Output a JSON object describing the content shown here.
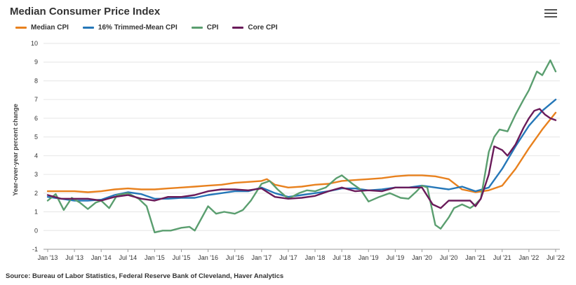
{
  "chart_data": {
    "type": "line",
    "title": "Median Consumer Price Index",
    "ylabel": "Year-over-year percent change",
    "xlabel": "",
    "ylim": [
      -1,
      10
    ],
    "yticks": [
      "-1",
      "0",
      "1",
      "2",
      "3",
      "4",
      "5",
      "6",
      "7",
      "8",
      "9",
      "10"
    ],
    "xticks": [
      "Jan '13",
      "Jul '13",
      "Jan '14",
      "Jul '14",
      "Jan '15",
      "Jul '15",
      "Jan '16",
      "Jul '16",
      "Jan '17",
      "Jul '17",
      "Jan '18",
      "Jul '18",
      "Jan '19",
      "Jul '19",
      "Jan '20",
      "Jul '20",
      "Jan '21",
      "Jul '21",
      "Jan '22",
      "Jul '22"
    ],
    "x_range": [
      2013.0,
      2022.5
    ],
    "series": [
      {
        "name": "Median CPI",
        "color": "#e8811e",
        "points": [
          [
            2013.0,
            2.1
          ],
          [
            2013.25,
            2.1
          ],
          [
            2013.5,
            2.1
          ],
          [
            2013.75,
            2.05
          ],
          [
            2014.0,
            2.1
          ],
          [
            2014.25,
            2.2
          ],
          [
            2014.5,
            2.25
          ],
          [
            2014.75,
            2.2
          ],
          [
            2015.0,
            2.2
          ],
          [
            2015.25,
            2.25
          ],
          [
            2015.5,
            2.3
          ],
          [
            2015.75,
            2.35
          ],
          [
            2016.0,
            2.4
          ],
          [
            2016.25,
            2.45
          ],
          [
            2016.5,
            2.55
          ],
          [
            2016.75,
            2.6
          ],
          [
            2017.0,
            2.65
          ],
          [
            2017.1,
            2.75
          ],
          [
            2017.25,
            2.45
          ],
          [
            2017.5,
            2.3
          ],
          [
            2017.75,
            2.35
          ],
          [
            2018.0,
            2.45
          ],
          [
            2018.25,
            2.5
          ],
          [
            2018.5,
            2.65
          ],
          [
            2018.75,
            2.7
          ],
          [
            2019.0,
            2.75
          ],
          [
            2019.25,
            2.8
          ],
          [
            2019.5,
            2.9
          ],
          [
            2019.75,
            2.95
          ],
          [
            2020.0,
            2.95
          ],
          [
            2020.25,
            2.9
          ],
          [
            2020.5,
            2.75
          ],
          [
            2020.75,
            2.2
          ],
          [
            2021.0,
            2.05
          ],
          [
            2021.25,
            2.15
          ],
          [
            2021.5,
            2.4
          ],
          [
            2021.75,
            3.3
          ],
          [
            2022.0,
            4.4
          ],
          [
            2022.25,
            5.4
          ],
          [
            2022.5,
            6.3
          ]
        ]
      },
      {
        "name": "16% Trimmed-Mean CPI",
        "color": "#2577b8",
        "points": [
          [
            2013.0,
            1.8
          ],
          [
            2013.25,
            1.7
          ],
          [
            2013.5,
            1.6
          ],
          [
            2013.75,
            1.6
          ],
          [
            2014.0,
            1.65
          ],
          [
            2014.25,
            1.9
          ],
          [
            2014.5,
            2.05
          ],
          [
            2014.75,
            1.95
          ],
          [
            2015.0,
            1.7
          ],
          [
            2015.25,
            1.7
          ],
          [
            2015.5,
            1.75
          ],
          [
            2015.75,
            1.75
          ],
          [
            2016.0,
            1.9
          ],
          [
            2016.25,
            2.0
          ],
          [
            2016.5,
            2.1
          ],
          [
            2016.75,
            2.1
          ],
          [
            2017.0,
            2.3
          ],
          [
            2017.25,
            2.0
          ],
          [
            2017.5,
            1.8
          ],
          [
            2017.75,
            1.9
          ],
          [
            2018.0,
            2.0
          ],
          [
            2018.25,
            2.1
          ],
          [
            2018.5,
            2.25
          ],
          [
            2018.75,
            2.25
          ],
          [
            2019.0,
            2.15
          ],
          [
            2019.25,
            2.2
          ],
          [
            2019.5,
            2.3
          ],
          [
            2019.75,
            2.3
          ],
          [
            2020.0,
            2.4
          ],
          [
            2020.25,
            2.3
          ],
          [
            2020.5,
            2.2
          ],
          [
            2020.75,
            2.35
          ],
          [
            2021.0,
            2.1
          ],
          [
            2021.25,
            2.3
          ],
          [
            2021.5,
            3.3
          ],
          [
            2021.75,
            4.5
          ],
          [
            2022.0,
            5.6
          ],
          [
            2022.25,
            6.4
          ],
          [
            2022.5,
            7.0
          ]
        ]
      },
      {
        "name": "CPI",
        "color": "#5a9e6f",
        "points": [
          [
            2013.0,
            1.6
          ],
          [
            2013.15,
            1.95
          ],
          [
            2013.3,
            1.1
          ],
          [
            2013.45,
            1.75
          ],
          [
            2013.6,
            1.5
          ],
          [
            2013.75,
            1.15
          ],
          [
            2013.9,
            1.5
          ],
          [
            2014.0,
            1.6
          ],
          [
            2014.15,
            1.2
          ],
          [
            2014.3,
            1.9
          ],
          [
            2014.5,
            2.0
          ],
          [
            2014.7,
            1.7
          ],
          [
            2014.85,
            1.3
          ],
          [
            2015.0,
            -0.1
          ],
          [
            2015.15,
            0.0
          ],
          [
            2015.3,
            0.0
          ],
          [
            2015.5,
            0.15
          ],
          [
            2015.65,
            0.2
          ],
          [
            2015.75,
            0.0
          ],
          [
            2016.0,
            1.3
          ],
          [
            2016.15,
            0.9
          ],
          [
            2016.3,
            1.0
          ],
          [
            2016.5,
            0.9
          ],
          [
            2016.65,
            1.1
          ],
          [
            2016.8,
            1.6
          ],
          [
            2017.0,
            2.5
          ],
          [
            2017.15,
            2.65
          ],
          [
            2017.3,
            2.2
          ],
          [
            2017.5,
            1.7
          ],
          [
            2017.7,
            2.0
          ],
          [
            2017.85,
            2.15
          ],
          [
            2018.0,
            2.1
          ],
          [
            2018.2,
            2.3
          ],
          [
            2018.4,
            2.8
          ],
          [
            2018.5,
            2.95
          ],
          [
            2018.7,
            2.5
          ],
          [
            2018.85,
            2.2
          ],
          [
            2019.0,
            1.55
          ],
          [
            2019.2,
            1.8
          ],
          [
            2019.4,
            2.0
          ],
          [
            2019.6,
            1.75
          ],
          [
            2019.75,
            1.7
          ],
          [
            2019.9,
            2.1
          ],
          [
            2020.0,
            2.4
          ],
          [
            2020.1,
            2.3
          ],
          [
            2020.25,
            0.3
          ],
          [
            2020.35,
            0.1
          ],
          [
            2020.5,
            0.7
          ],
          [
            2020.6,
            1.2
          ],
          [
            2020.75,
            1.4
          ],
          [
            2020.9,
            1.2
          ],
          [
            2021.0,
            1.4
          ],
          [
            2021.1,
            1.7
          ],
          [
            2021.25,
            4.2
          ],
          [
            2021.35,
            5.0
          ],
          [
            2021.45,
            5.4
          ],
          [
            2021.6,
            5.3
          ],
          [
            2021.75,
            6.2
          ],
          [
            2021.9,
            7.0
          ],
          [
            2022.0,
            7.5
          ],
          [
            2022.15,
            8.5
          ],
          [
            2022.25,
            8.3
          ],
          [
            2022.4,
            9.1
          ],
          [
            2022.5,
            8.5
          ]
        ]
      },
      {
        "name": "Core CPI",
        "color": "#6a1b5a",
        "points": [
          [
            2013.0,
            1.9
          ],
          [
            2013.25,
            1.7
          ],
          [
            2013.5,
            1.7
          ],
          [
            2013.75,
            1.7
          ],
          [
            2014.0,
            1.6
          ],
          [
            2014.25,
            1.8
          ],
          [
            2014.5,
            1.9
          ],
          [
            2014.75,
            1.7
          ],
          [
            2015.0,
            1.6
          ],
          [
            2015.25,
            1.8
          ],
          [
            2015.5,
            1.8
          ],
          [
            2015.75,
            1.9
          ],
          [
            2016.0,
            2.1
          ],
          [
            2016.25,
            2.2
          ],
          [
            2016.5,
            2.2
          ],
          [
            2016.75,
            2.15
          ],
          [
            2017.0,
            2.25
          ],
          [
            2017.25,
            1.8
          ],
          [
            2017.5,
            1.7
          ],
          [
            2017.75,
            1.75
          ],
          [
            2018.0,
            1.85
          ],
          [
            2018.25,
            2.1
          ],
          [
            2018.5,
            2.3
          ],
          [
            2018.75,
            2.1
          ],
          [
            2019.0,
            2.15
          ],
          [
            2019.25,
            2.1
          ],
          [
            2019.5,
            2.3
          ],
          [
            2019.75,
            2.3
          ],
          [
            2020.0,
            2.3
          ],
          [
            2020.2,
            1.4
          ],
          [
            2020.35,
            1.2
          ],
          [
            2020.5,
            1.6
          ],
          [
            2020.75,
            1.6
          ],
          [
            2020.9,
            1.6
          ],
          [
            2021.0,
            1.3
          ],
          [
            2021.1,
            1.7
          ],
          [
            2021.25,
            3.0
          ],
          [
            2021.35,
            4.5
          ],
          [
            2021.5,
            4.3
          ],
          [
            2021.6,
            4.0
          ],
          [
            2021.75,
            4.6
          ],
          [
            2021.9,
            5.5
          ],
          [
            2022.0,
            6.0
          ],
          [
            2022.1,
            6.4
          ],
          [
            2022.2,
            6.5
          ],
          [
            2022.3,
            6.2
          ],
          [
            2022.4,
            6.0
          ],
          [
            2022.5,
            5.9
          ]
        ]
      }
    ],
    "source": "Source: Bureau of Labor Statistics, Federal Reserve Bank of Cleveland, Haver Analytics"
  }
}
